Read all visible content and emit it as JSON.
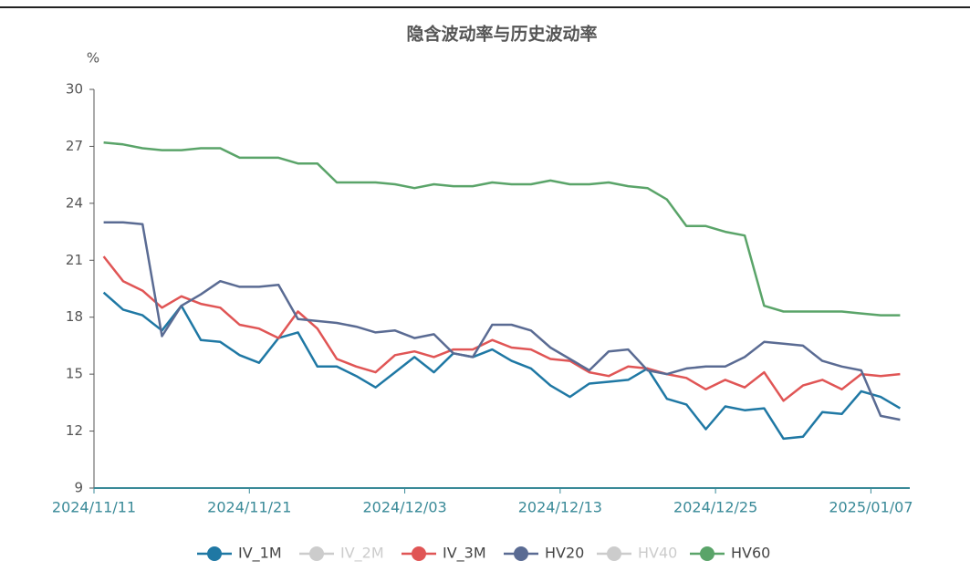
{
  "chart_data": {
    "type": "line",
    "title": "隐含波动率与历史波动率",
    "y_unit": "%",
    "categories": [
      "2024/11/11",
      null,
      null,
      null,
      null,
      null,
      null,
      null,
      "2024/11/21",
      null,
      null,
      null,
      null,
      null,
      null,
      null,
      "2024/12/03",
      null,
      null,
      null,
      null,
      null,
      null,
      null,
      "2024/12/13",
      null,
      null,
      null,
      null,
      null,
      null,
      null,
      "2024/12/25",
      null,
      null,
      null,
      null,
      null,
      null,
      null,
      "2025/01/07",
      null
    ],
    "series": [
      {
        "name": "IV_1M",
        "color": "#1f78a4",
        "hidden": false,
        "values": [
          19.3,
          18.4,
          18.1,
          17.3,
          18.6,
          16.8,
          16.7,
          16.0,
          15.6,
          16.9,
          17.2,
          15.4,
          15.4,
          14.9,
          14.3,
          15.1,
          15.9,
          15.1,
          16.1,
          15.9,
          16.3,
          15.7,
          15.3,
          14.4,
          13.8,
          14.5,
          14.6,
          14.7,
          15.3,
          13.7,
          13.4,
          12.1,
          13.3,
          13.1,
          13.2,
          11.6,
          11.7,
          13.0,
          12.9,
          14.1,
          13.8,
          13.2
        ]
      },
      {
        "name": "IV_2M",
        "color": "#cccccc",
        "hidden": true,
        "values": [
          null,
          null,
          null,
          null,
          null,
          null,
          null,
          null,
          null,
          null,
          null,
          null,
          null,
          null,
          null,
          null,
          null,
          null,
          null,
          null,
          null,
          null,
          null,
          null,
          null,
          null,
          null,
          null,
          null,
          null,
          null,
          null,
          null,
          null,
          null,
          null,
          null,
          null,
          null,
          null,
          null,
          null
        ]
      },
      {
        "name": "IV_3M",
        "color": "#e05555",
        "hidden": false,
        "values": [
          21.2,
          19.9,
          19.4,
          18.5,
          19.1,
          18.7,
          18.5,
          17.6,
          17.4,
          16.9,
          18.3,
          17.4,
          15.8,
          15.4,
          15.1,
          16.0,
          16.2,
          15.9,
          16.3,
          16.3,
          16.8,
          16.4,
          16.3,
          15.8,
          15.7,
          15.1,
          14.9,
          15.4,
          15.3,
          15.0,
          14.8,
          14.2,
          14.7,
          14.3,
          15.1,
          13.6,
          14.4,
          14.7,
          14.2,
          15.0,
          14.9,
          15.0
        ]
      },
      {
        "name": "HV20",
        "color": "#5a6b93",
        "hidden": false,
        "values": [
          23.0,
          23.0,
          22.9,
          17.0,
          18.6,
          19.2,
          19.9,
          19.6,
          19.6,
          19.7,
          17.9,
          17.8,
          17.7,
          17.5,
          17.2,
          17.3,
          16.9,
          17.1,
          16.1,
          15.9,
          17.6,
          17.6,
          17.3,
          16.4,
          15.8,
          15.2,
          16.2,
          16.3,
          15.2,
          15.0,
          15.3,
          15.4,
          15.4,
          15.9,
          16.7,
          16.6,
          16.5,
          15.7,
          15.4,
          15.2,
          12.8,
          12.6
        ]
      },
      {
        "name": "HV40",
        "color": "#cccccc",
        "hidden": true,
        "values": [
          null,
          null,
          null,
          null,
          null,
          null,
          null,
          null,
          null,
          null,
          null,
          null,
          null,
          null,
          null,
          null,
          null,
          null,
          null,
          null,
          null,
          null,
          null,
          null,
          null,
          null,
          null,
          null,
          null,
          null,
          null,
          null,
          null,
          null,
          null,
          null,
          null,
          null,
          null,
          null,
          null,
          null
        ]
      },
      {
        "name": "HV60",
        "color": "#5aa469",
        "hidden": false,
        "values": [
          27.2,
          27.1,
          26.9,
          26.8,
          26.8,
          26.9,
          26.9,
          26.4,
          26.4,
          26.4,
          26.1,
          26.1,
          25.1,
          25.1,
          25.1,
          25.0,
          24.8,
          25.0,
          24.9,
          24.9,
          25.1,
          25.0,
          25.0,
          25.2,
          25.0,
          25.0,
          25.1,
          24.9,
          24.8,
          24.2,
          22.8,
          22.8,
          22.5,
          22.3,
          18.6,
          18.3,
          18.3,
          18.3,
          18.3,
          18.2,
          18.1,
          18.1
        ]
      }
    ],
    "ylim": [
      9,
      30
    ],
    "yticks": [
      9,
      12,
      15,
      18,
      21,
      24,
      27,
      30
    ],
    "grid": false,
    "legend": "bottom"
  }
}
